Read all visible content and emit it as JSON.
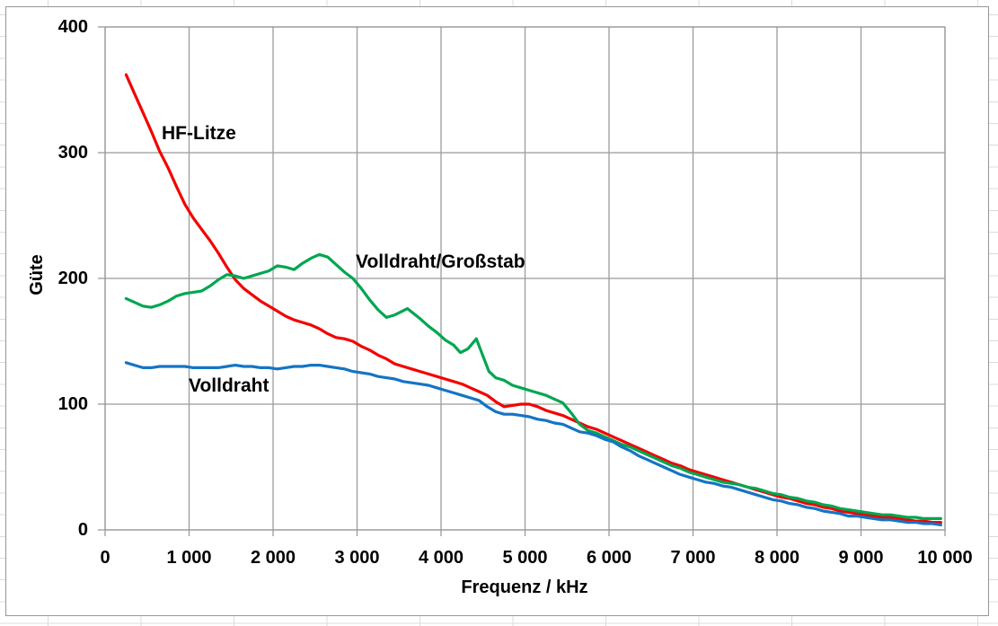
{
  "chart_data": {
    "type": "line",
    "title": "",
    "xlabel": "Frequenz / kHz",
    "ylabel": "Güte",
    "xlim": [
      0,
      10000
    ],
    "ylim": [
      0,
      400
    ],
    "grid": "both",
    "legend_position": "inline-labels",
    "grid_color": "#9b9b9b",
    "x_ticks": [
      {
        "v": 0,
        "label": "0"
      },
      {
        "v": 1000,
        "label": "1 000"
      },
      {
        "v": 2000,
        "label": "2 000"
      },
      {
        "v": 3000,
        "label": "3 000"
      },
      {
        "v": 4000,
        "label": "4 000"
      },
      {
        "v": 5000,
        "label": "5 000"
      },
      {
        "v": 6000,
        "label": "6 000"
      },
      {
        "v": 7000,
        "label": "7 000"
      },
      {
        "v": 8000,
        "label": "8 000"
      },
      {
        "v": 9000,
        "label": "9 000"
      },
      {
        "v": 10000,
        "label": "10 000"
      }
    ],
    "y_ticks": [
      {
        "v": 0,
        "label": "0"
      },
      {
        "v": 100,
        "label": "100"
      },
      {
        "v": 200,
        "label": "200"
      },
      {
        "v": 300,
        "label": "300"
      },
      {
        "v": 400,
        "label": "400"
      }
    ],
    "series": [
      {
        "name": "HF-Litze",
        "color": "#f40000",
        "points": [
          [
            250,
            362
          ],
          [
            350,
            347
          ],
          [
            450,
            332
          ],
          [
            550,
            317
          ],
          [
            650,
            301
          ],
          [
            750,
            288
          ],
          [
            850,
            273
          ],
          [
            950,
            259
          ],
          [
            1050,
            248
          ],
          [
            1150,
            239
          ],
          [
            1250,
            230
          ],
          [
            1350,
            220
          ],
          [
            1450,
            209
          ],
          [
            1550,
            199
          ],
          [
            1650,
            192
          ],
          [
            1750,
            187
          ],
          [
            1850,
            182
          ],
          [
            1950,
            178
          ],
          [
            2050,
            174
          ],
          [
            2150,
            170
          ],
          [
            2250,
            167
          ],
          [
            2350,
            165
          ],
          [
            2450,
            163
          ],
          [
            2550,
            160
          ],
          [
            2650,
            156
          ],
          [
            2750,
            153
          ],
          [
            2850,
            152
          ],
          [
            2950,
            150
          ],
          [
            3050,
            146
          ],
          [
            3150,
            143
          ],
          [
            3250,
            139
          ],
          [
            3350,
            136
          ],
          [
            3450,
            132
          ],
          [
            3550,
            130
          ],
          [
            3650,
            128
          ],
          [
            3750,
            126
          ],
          [
            3850,
            124
          ],
          [
            3950,
            122
          ],
          [
            4050,
            120
          ],
          [
            4150,
            118
          ],
          [
            4250,
            116
          ],
          [
            4350,
            113
          ],
          [
            4450,
            110
          ],
          [
            4550,
            107
          ],
          [
            4650,
            102
          ],
          [
            4750,
            98
          ],
          [
            4850,
            99
          ],
          [
            4950,
            100
          ],
          [
            5050,
            100
          ],
          [
            5150,
            98
          ],
          [
            5250,
            95
          ],
          [
            5350,
            93
          ],
          [
            5450,
            91
          ],
          [
            5550,
            88
          ],
          [
            5650,
            85
          ],
          [
            5750,
            82
          ],
          [
            5850,
            80
          ],
          [
            5950,
            77
          ],
          [
            6050,
            74
          ],
          [
            6150,
            71
          ],
          [
            6250,
            68
          ],
          [
            6350,
            65
          ],
          [
            6450,
            62
          ],
          [
            6550,
            59
          ],
          [
            6650,
            56
          ],
          [
            6750,
            53
          ],
          [
            6850,
            51
          ],
          [
            6950,
            48
          ],
          [
            7050,
            46
          ],
          [
            7150,
            44
          ],
          [
            7250,
            42
          ],
          [
            7350,
            40
          ],
          [
            7450,
            38
          ],
          [
            7550,
            36
          ],
          [
            7650,
            34
          ],
          [
            7750,
            32
          ],
          [
            7850,
            30
          ],
          [
            7950,
            28
          ],
          [
            8050,
            26
          ],
          [
            8150,
            25
          ],
          [
            8250,
            23
          ],
          [
            8350,
            21
          ],
          [
            8450,
            20
          ],
          [
            8550,
            18
          ],
          [
            8650,
            17
          ],
          [
            8750,
            15
          ],
          [
            8850,
            14
          ],
          [
            8950,
            13
          ],
          [
            9050,
            12
          ],
          [
            9150,
            11
          ],
          [
            9250,
            10
          ],
          [
            9350,
            10
          ],
          [
            9450,
            9
          ],
          [
            9550,
            8
          ],
          [
            9650,
            7
          ],
          [
            9750,
            7
          ],
          [
            9850,
            6
          ],
          [
            9950,
            6
          ]
        ]
      },
      {
        "name": "Volldraht/Großstab",
        "color": "#00a650",
        "points": [
          [
            250,
            184
          ],
          [
            350,
            181
          ],
          [
            450,
            178
          ],
          [
            550,
            177
          ],
          [
            650,
            179
          ],
          [
            750,
            182
          ],
          [
            850,
            186
          ],
          [
            950,
            188
          ],
          [
            1050,
            189
          ],
          [
            1150,
            190
          ],
          [
            1250,
            194
          ],
          [
            1350,
            199
          ],
          [
            1450,
            203
          ],
          [
            1550,
            202
          ],
          [
            1650,
            200
          ],
          [
            1750,
            202
          ],
          [
            1850,
            204
          ],
          [
            1950,
            206
          ],
          [
            2050,
            210
          ],
          [
            2150,
            209
          ],
          [
            2250,
            207
          ],
          [
            2350,
            212
          ],
          [
            2450,
            216
          ],
          [
            2550,
            219
          ],
          [
            2650,
            217
          ],
          [
            2750,
            211
          ],
          [
            2850,
            205
          ],
          [
            2950,
            200
          ],
          [
            3050,
            192
          ],
          [
            3150,
            183
          ],
          [
            3250,
            175
          ],
          [
            3350,
            169
          ],
          [
            3450,
            171
          ],
          [
            3600,
            176
          ],
          [
            3750,
            168
          ],
          [
            3850,
            162
          ],
          [
            3950,
            157
          ],
          [
            4050,
            151
          ],
          [
            4150,
            147
          ],
          [
            4230,
            141
          ],
          [
            4320,
            144
          ],
          [
            4420,
            152
          ],
          [
            4500,
            138
          ],
          [
            4570,
            126
          ],
          [
            4650,
            121
          ],
          [
            4750,
            119
          ],
          [
            4850,
            115
          ],
          [
            4950,
            113
          ],
          [
            5050,
            111
          ],
          [
            5150,
            109
          ],
          [
            5250,
            107
          ],
          [
            5350,
            104
          ],
          [
            5450,
            101
          ],
          [
            5550,
            93
          ],
          [
            5650,
            84
          ],
          [
            5750,
            79
          ],
          [
            5850,
            77
          ],
          [
            5950,
            74
          ],
          [
            6050,
            71
          ],
          [
            6150,
            68
          ],
          [
            6250,
            66
          ],
          [
            6350,
            63
          ],
          [
            6450,
            60
          ],
          [
            6550,
            57
          ],
          [
            6650,
            54
          ],
          [
            6750,
            51
          ],
          [
            6850,
            49
          ],
          [
            6950,
            46
          ],
          [
            7050,
            44
          ],
          [
            7150,
            42
          ],
          [
            7250,
            40
          ],
          [
            7350,
            38
          ],
          [
            7450,
            37
          ],
          [
            7550,
            36
          ],
          [
            7650,
            34
          ],
          [
            7750,
            33
          ],
          [
            7850,
            31
          ],
          [
            7950,
            29
          ],
          [
            8050,
            28
          ],
          [
            8150,
            26
          ],
          [
            8250,
            25
          ],
          [
            8350,
            23
          ],
          [
            8450,
            22
          ],
          [
            8550,
            20
          ],
          [
            8650,
            19
          ],
          [
            8750,
            17
          ],
          [
            8850,
            16
          ],
          [
            8950,
            15
          ],
          [
            9050,
            14
          ],
          [
            9150,
            13
          ],
          [
            9250,
            12
          ],
          [
            9350,
            12
          ],
          [
            9450,
            11
          ],
          [
            9550,
            10
          ],
          [
            9650,
            10
          ],
          [
            9750,
            9
          ],
          [
            9850,
            9
          ],
          [
            9950,
            9
          ]
        ]
      },
      {
        "name": "Volldraht",
        "color": "#1474c4",
        "points": [
          [
            250,
            133
          ],
          [
            350,
            131
          ],
          [
            450,
            129
          ],
          [
            550,
            129
          ],
          [
            650,
            130
          ],
          [
            750,
            130
          ],
          [
            850,
            130
          ],
          [
            950,
            130
          ],
          [
            1050,
            129
          ],
          [
            1150,
            129
          ],
          [
            1250,
            129
          ],
          [
            1350,
            129
          ],
          [
            1450,
            130
          ],
          [
            1550,
            131
          ],
          [
            1650,
            130
          ],
          [
            1750,
            130
          ],
          [
            1850,
            129
          ],
          [
            1950,
            129
          ],
          [
            2050,
            128
          ],
          [
            2150,
            129
          ],
          [
            2250,
            130
          ],
          [
            2350,
            130
          ],
          [
            2450,
            131
          ],
          [
            2550,
            131
          ],
          [
            2650,
            130
          ],
          [
            2750,
            129
          ],
          [
            2850,
            128
          ],
          [
            2950,
            126
          ],
          [
            3050,
            125
          ],
          [
            3150,
            124
          ],
          [
            3250,
            122
          ],
          [
            3350,
            121
          ],
          [
            3450,
            120
          ],
          [
            3550,
            118
          ],
          [
            3650,
            117
          ],
          [
            3750,
            116
          ],
          [
            3850,
            115
          ],
          [
            3950,
            113
          ],
          [
            4050,
            111
          ],
          [
            4150,
            109
          ],
          [
            4250,
            107
          ],
          [
            4350,
            105
          ],
          [
            4450,
            103
          ],
          [
            4550,
            98
          ],
          [
            4650,
            94
          ],
          [
            4750,
            92
          ],
          [
            4850,
            92
          ],
          [
            4950,
            91
          ],
          [
            5050,
            90
          ],
          [
            5150,
            88
          ],
          [
            5250,
            87
          ],
          [
            5350,
            85
          ],
          [
            5450,
            84
          ],
          [
            5550,
            81
          ],
          [
            5650,
            78
          ],
          [
            5750,
            77
          ],
          [
            5850,
            75
          ],
          [
            5950,
            72
          ],
          [
            6050,
            70
          ],
          [
            6150,
            66
          ],
          [
            6250,
            63
          ],
          [
            6350,
            59
          ],
          [
            6450,
            56
          ],
          [
            6550,
            53
          ],
          [
            6650,
            50
          ],
          [
            6750,
            47
          ],
          [
            6850,
            44
          ],
          [
            6950,
            42
          ],
          [
            7050,
            40
          ],
          [
            7150,
            38
          ],
          [
            7250,
            37
          ],
          [
            7350,
            35
          ],
          [
            7450,
            34
          ],
          [
            7550,
            32
          ],
          [
            7650,
            30
          ],
          [
            7750,
            28
          ],
          [
            7850,
            26
          ],
          [
            7950,
            24
          ],
          [
            8050,
            23
          ],
          [
            8150,
            21
          ],
          [
            8250,
            20
          ],
          [
            8350,
            18
          ],
          [
            8450,
            17
          ],
          [
            8550,
            15
          ],
          [
            8650,
            14
          ],
          [
            8750,
            13
          ],
          [
            8850,
            11
          ],
          [
            8950,
            11
          ],
          [
            9050,
            10
          ],
          [
            9150,
            9
          ],
          [
            9250,
            8
          ],
          [
            9350,
            8
          ],
          [
            9450,
            7
          ],
          [
            9550,
            6
          ],
          [
            9650,
            6
          ],
          [
            9750,
            5
          ],
          [
            9850,
            5
          ],
          [
            9950,
            4
          ]
        ]
      }
    ]
  }
}
